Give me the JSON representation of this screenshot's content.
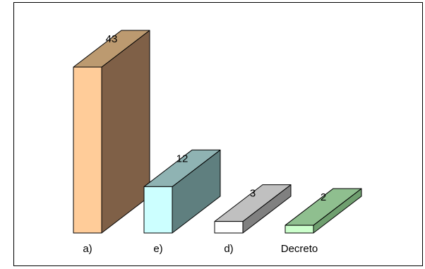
{
  "chart_data": {
    "type": "bar",
    "style": "3d-column",
    "categories": [
      "a)",
      "e)",
      "d)",
      "Decreto"
    ],
    "values": [
      43,
      12,
      3,
      2
    ],
    "ylim": [
      0,
      43
    ],
    "grid": false,
    "legend": "none",
    "colors": [
      {
        "front": "#ffcc99",
        "top": "#bc9a70",
        "side": "#7f6047"
      },
      {
        "front": "#ccffff",
        "top": "#8fb3b3",
        "side": "#5f7f7f"
      },
      {
        "front": "#ffffff",
        "top": "#c0c0c0",
        "side": "#808080"
      },
      {
        "front": "#ccffcc",
        "top": "#8fbf8f",
        "side": "#6f9f6f"
      }
    ]
  }
}
